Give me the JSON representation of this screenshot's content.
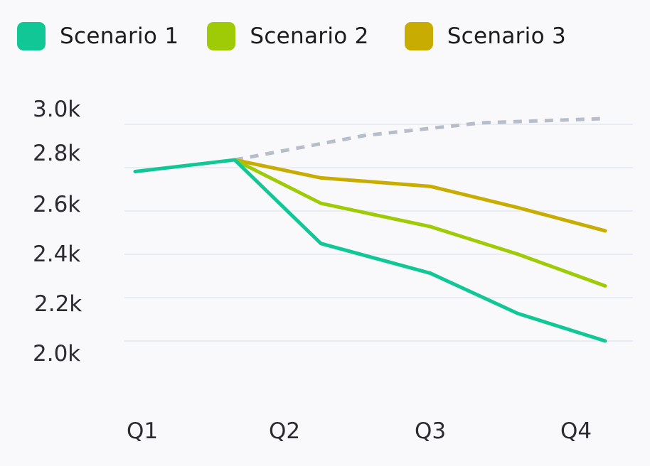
{
  "chart_data": {
    "type": "line",
    "categories": [
      "Q1",
      "Q2",
      "Q3",
      "Q4"
    ],
    "y_ticks": [
      "3.0k",
      "2.8k",
      "2.6k",
      "2.4k",
      "2.2k",
      "2.0k"
    ],
    "ylim": [
      1950,
      3050
    ],
    "grid": true,
    "legend_position": "top-left",
    "baseline": {
      "style": "dotted",
      "color": "#b8bec9",
      "points": [
        {
          "x": 1.65,
          "y": 2805
        },
        {
          "x": 2.55,
          "y": 2920
        },
        {
          "x": 3.35,
          "y": 2980
        },
        {
          "x": 4.2,
          "y": 3000
        }
      ]
    },
    "series": [
      {
        "name": "Scenario 1",
        "color": "#12c796",
        "points": [
          {
            "x": 0.95,
            "y": 2750
          },
          {
            "x": 1.65,
            "y": 2805
          },
          {
            "x": 2.25,
            "y": 2410
          },
          {
            "x": 3.0,
            "y": 2270
          },
          {
            "x": 3.6,
            "y": 2080
          },
          {
            "x": 4.2,
            "y": 1950
          }
        ]
      },
      {
        "name": "Scenario 2",
        "color": "#9fcb06",
        "points": [
          {
            "x": 1.65,
            "y": 2805
          },
          {
            "x": 2.25,
            "y": 2600
          },
          {
            "x": 3.0,
            "y": 2490
          },
          {
            "x": 3.6,
            "y": 2360
          },
          {
            "x": 4.2,
            "y": 2210
          }
        ]
      },
      {
        "name": "Scenario 3",
        "color": "#c9ac02",
        "points": [
          {
            "x": 1.65,
            "y": 2805
          },
          {
            "x": 2.25,
            "y": 2720
          },
          {
            "x": 3.0,
            "y": 2680
          },
          {
            "x": 3.6,
            "y": 2580
          },
          {
            "x": 4.2,
            "y": 2470
          }
        ]
      }
    ]
  }
}
